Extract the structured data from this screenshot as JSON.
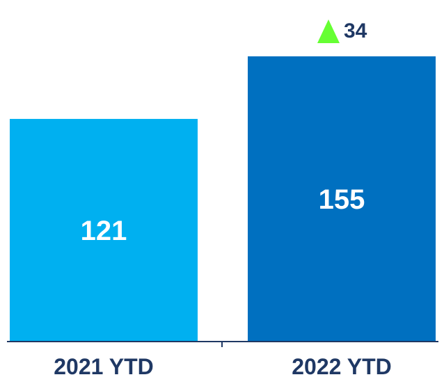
{
  "chart_data": {
    "type": "bar",
    "categories": [
      "2021 YTD",
      "2022 YTD"
    ],
    "values": [
      121,
      155
    ],
    "value_labels": [
      "121",
      "155"
    ],
    "bar_colors": [
      "#00B0F0",
      "#0070C0"
    ],
    "title": "",
    "xlabel": "",
    "ylabel": "",
    "ylim": [
      0,
      167
    ],
    "grid": false,
    "axis_color": "#1F3864",
    "label_color": "#1F3864",
    "change": {
      "value": 34,
      "label": "34",
      "direction": "up",
      "icon": "triangle-up-icon",
      "icon_color": "#66FF33"
    }
  }
}
